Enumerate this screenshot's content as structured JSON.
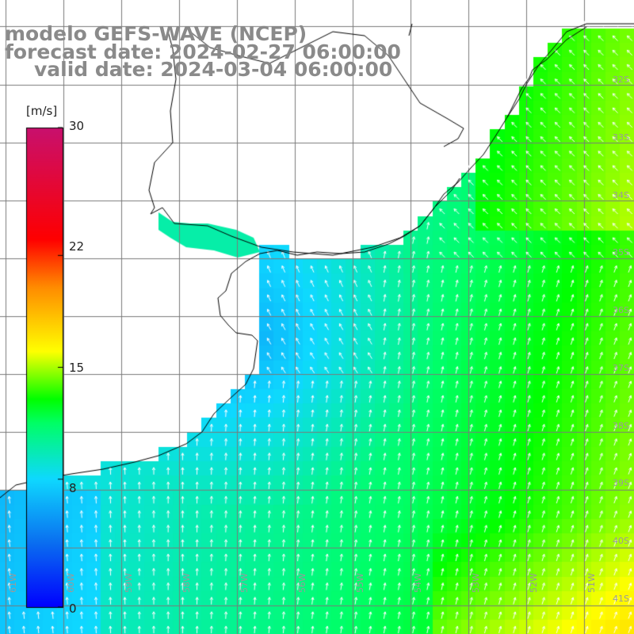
{
  "header": {
    "line1": "modelo GEFS-WAVE (NCEP)",
    "line2": "forecast date: 2024-02-27 06:00:00",
    "line3": "valid date: 2024-03-04 06:00:00"
  },
  "colorbar": {
    "unit": "[m/s]",
    "ticks": [
      {
        "label": "30",
        "value": 30
      },
      {
        "label": "22",
        "value": 22
      },
      {
        "label": "15",
        "value": 15
      },
      {
        "label": "8",
        "value": 8
      },
      {
        "label": "0",
        "value": 0
      }
    ],
    "colors": [
      "#0000ff",
      "#0a6ef0",
      "#0ed8ff",
      "#00ff66",
      "#00ff00",
      "#ffff00",
      "#ff8c00",
      "#ff0000",
      "#c8106e"
    ]
  },
  "lat_labels": [
    "32S",
    "33S",
    "34S",
    "35S",
    "36S",
    "37S",
    "38S",
    "39S",
    "40S",
    "41S"
  ],
  "lon_labels": [
    "61W",
    "60W",
    "59W",
    "58W",
    "57W",
    "56W",
    "55W",
    "54W",
    "53W",
    "52W",
    "51W"
  ],
  "map": {
    "land_color": "#ffffff",
    "coast_color": "#000000",
    "grid_color": "#7a7a7a",
    "arrow_color": "#ffffff"
  }
}
